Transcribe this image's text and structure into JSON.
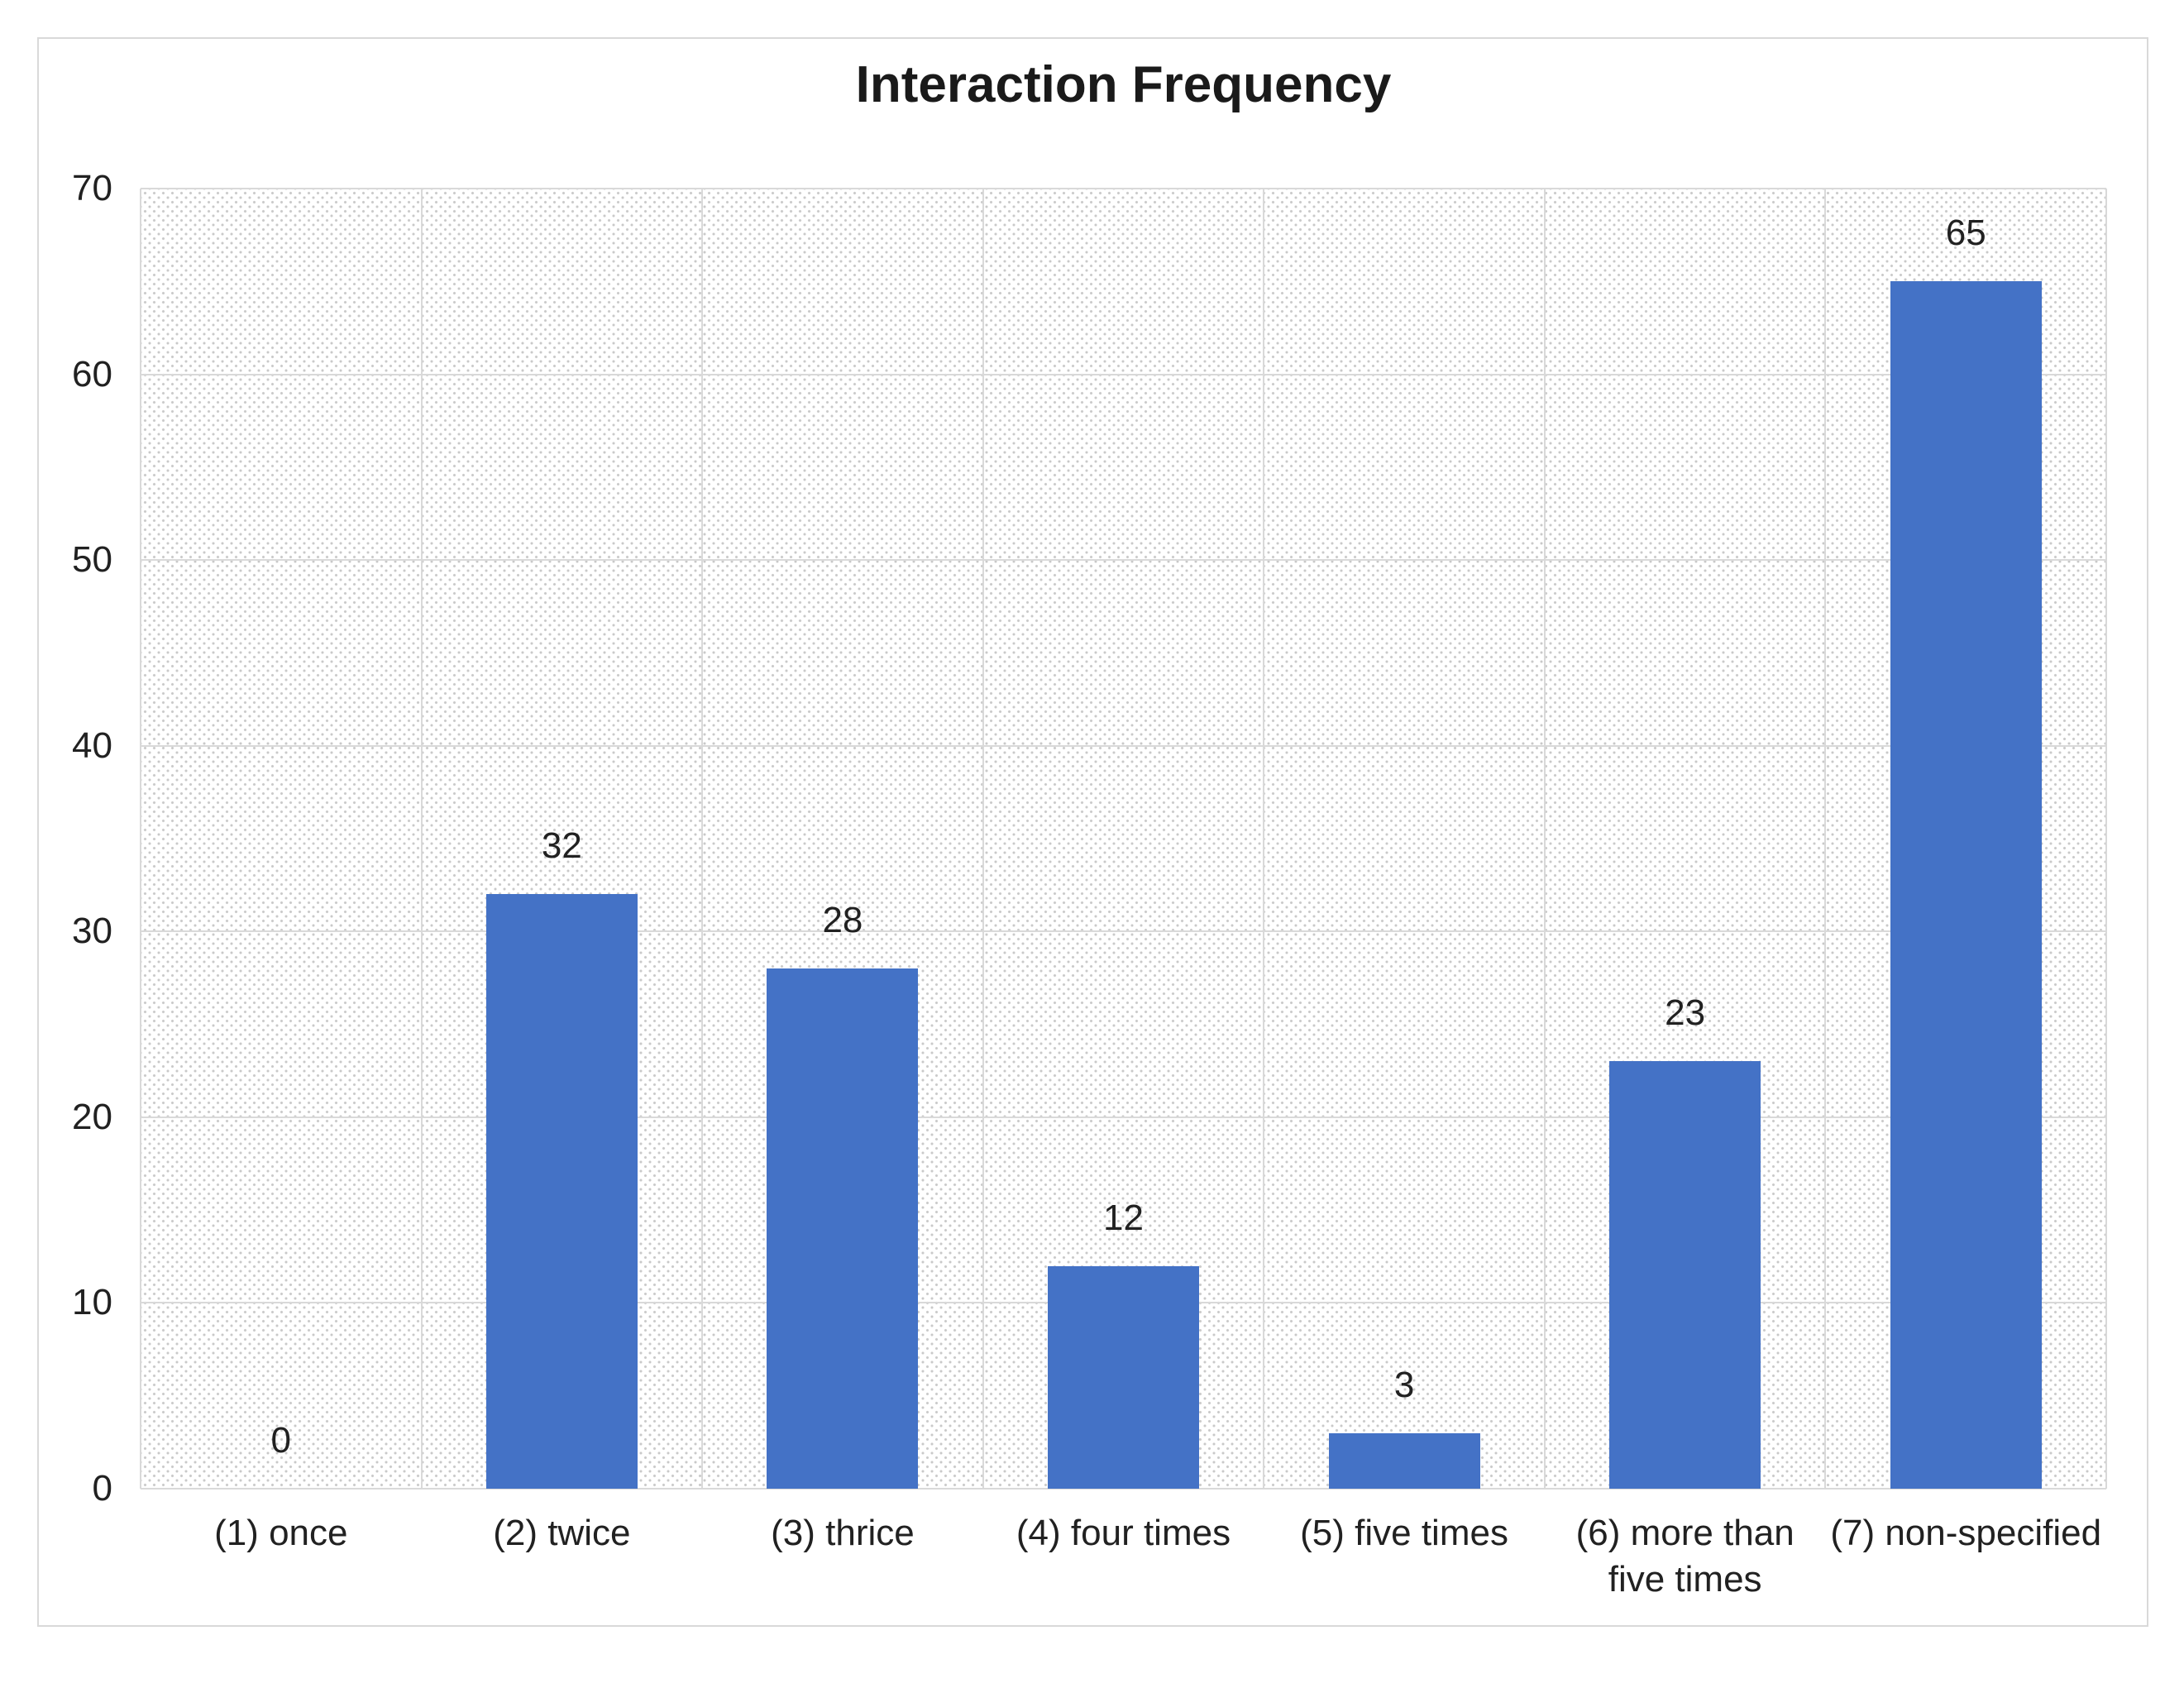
{
  "figure": {
    "background_color": "#ffffff",
    "border_color": "#d9d9d9"
  },
  "chart_data": {
    "type": "bar",
    "title": "Interaction Frequency",
    "categories": [
      "(1) once",
      "(2) twice",
      "(3) thrice",
      "(4) four times",
      "(5) five times",
      "(6) more than five times",
      "(7) non-specified"
    ],
    "values": [
      0,
      32,
      28,
      12,
      3,
      23,
      65
    ],
    "data_labels": [
      "0",
      "32",
      "28",
      "12",
      "3",
      "23",
      "65"
    ],
    "xlabel": "",
    "ylabel": "",
    "ylim": [
      0,
      70
    ],
    "yticks": [
      0,
      10,
      20,
      30,
      40,
      50,
      60,
      70
    ],
    "legend": "none",
    "grid": "horizontal and vertical gridlines on",
    "plot_fill": "light diagonal dot hatch pattern",
    "bar_color": "#4472C6",
    "gridline_color": "#d9d9d9",
    "text_color": "#212121",
    "title_color": "#1a1a1a",
    "hatch_dot_color": "#c9c9c9"
  }
}
